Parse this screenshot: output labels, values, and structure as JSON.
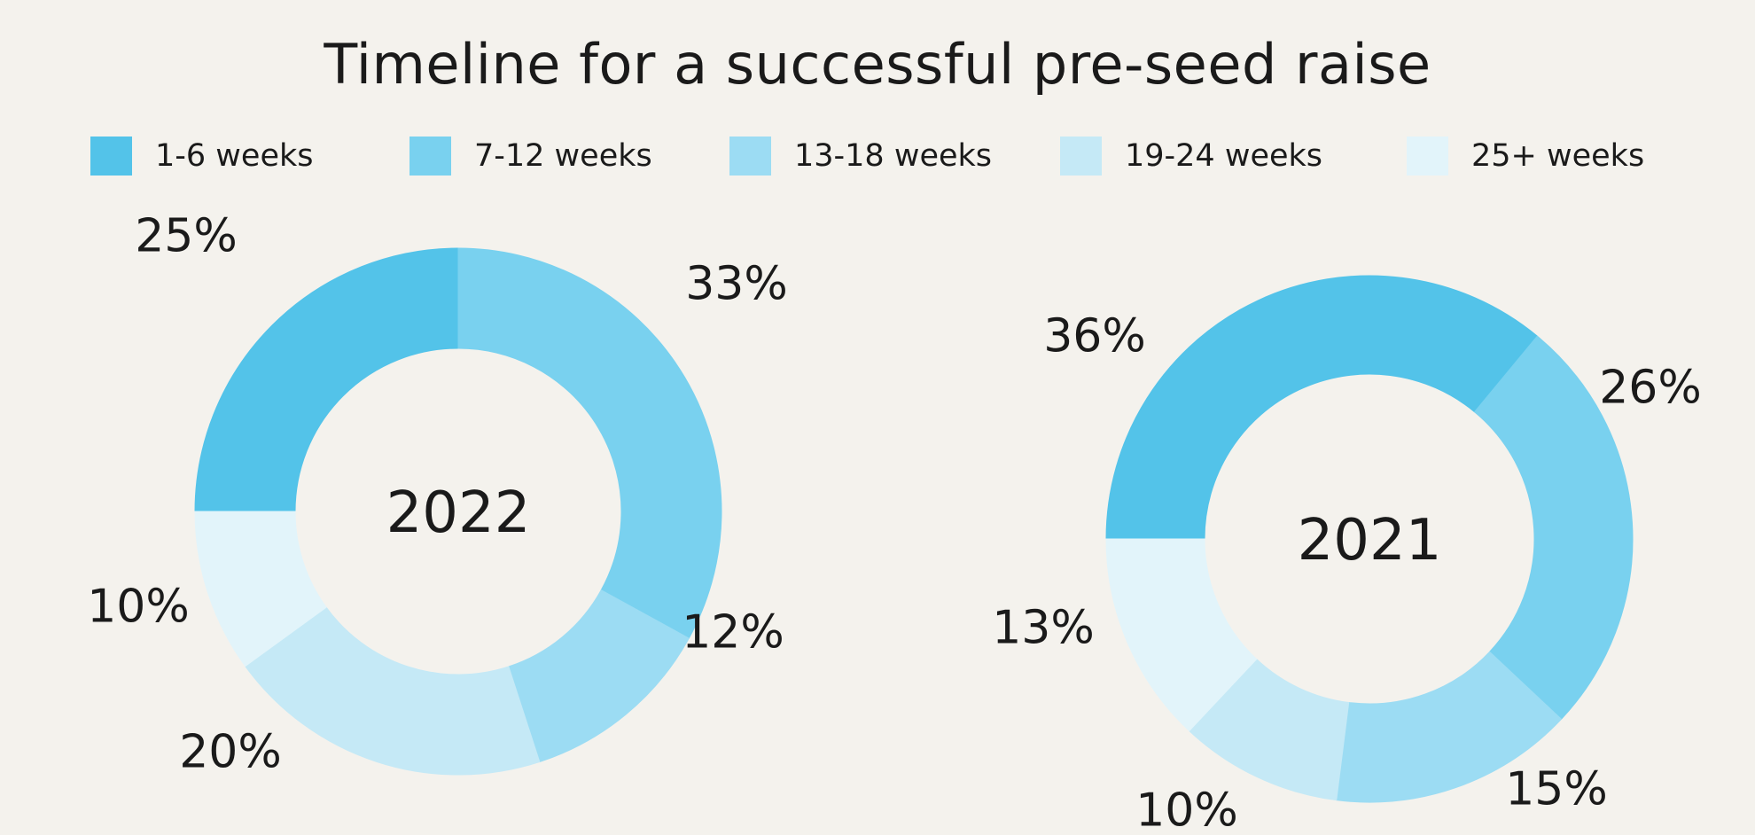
{
  "title": "Timeline for a successful pre-seed raise",
  "colors": {
    "background": "#F4F2ED",
    "text": "#1A1A1A",
    "palette": [
      "#53C3E9",
      "#79D1EF",
      "#9CDCF3",
      "#C5E9F6",
      "#E2F4FA"
    ]
  },
  "legend": {
    "items": [
      {
        "label": "1-6 weeks",
        "color": "#53C3E9"
      },
      {
        "label": "7-12 weeks",
        "color": "#79D1EF"
      },
      {
        "label": "13-18 weeks",
        "color": "#9CDCF3"
      },
      {
        "label": "19-24 weeks",
        "color": "#C5E9F6"
      },
      {
        "label": "25+ weeks",
        "color": "#E2F4FA"
      }
    ]
  },
  "chart_data": [
    {
      "type": "pie",
      "subtype": "donut",
      "center_label": "2022",
      "categories": [
        "1-6 weeks",
        "7-12 weeks",
        "13-18 weeks",
        "19-24 weeks",
        "25+ weeks"
      ],
      "values": [
        25,
        33,
        12,
        20,
        10
      ],
      "unit": "%",
      "data_labels": [
        "25%",
        "33%",
        "12%",
        "20%",
        "10%"
      ],
      "start_angle_deg": 270,
      "direction": "clockwise",
      "legend_position": "top"
    },
    {
      "type": "pie",
      "subtype": "donut",
      "center_label": "2021",
      "categories": [
        "1-6 weeks",
        "7-12 weeks",
        "13-18 weeks",
        "19-24 weeks",
        "25+ weeks"
      ],
      "values": [
        36,
        26,
        15,
        10,
        13
      ],
      "unit": "%",
      "data_labels": [
        "36%",
        "26%",
        "15%",
        "10%",
        "13%"
      ],
      "start_angle_deg": 270,
      "direction": "clockwise",
      "legend_position": "top"
    }
  ]
}
